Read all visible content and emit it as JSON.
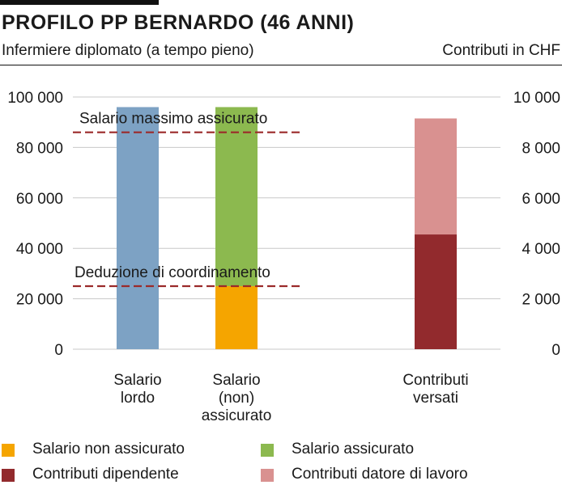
{
  "chart_data": {
    "type": "bar",
    "title": "PROFILO PP BERNARDO (46 ANNI)",
    "subtitle": "Infermiere diplomato (a tempo pieno)",
    "units_label": "Contributi in CHF",
    "left_axis": {
      "ylim": [
        0,
        100000
      ],
      "ticks": [
        "0",
        "20 000",
        "40 000",
        "60 000",
        "80 000",
        "100 000"
      ],
      "tick_values": [
        0,
        20000,
        40000,
        60000,
        80000,
        100000
      ]
    },
    "right_axis": {
      "ylim": [
        0,
        10000
      ],
      "ticks": [
        "0",
        "2 000",
        "4 000",
        "6 000",
        "8 000",
        "10 000"
      ],
      "tick_values": [
        0,
        2000,
        4000,
        6000,
        8000,
        10000
      ]
    },
    "grid": true,
    "categories": [
      "Salario lordo",
      "Salario (non) assicurato",
      "Contributi versati"
    ],
    "category_lines": [
      [
        "Salario",
        "lordo"
      ],
      [
        "Salario",
        "(non)",
        "assicurato"
      ],
      [
        "Contributi",
        "versati"
      ]
    ],
    "bars": [
      {
        "category": "Salario lordo",
        "axis": "left",
        "segments": [
          {
            "name": "Salario lordo",
            "value": 96000,
            "color": "#7da2c4"
          }
        ]
      },
      {
        "category": "Salario (non) assicurato",
        "axis": "left",
        "segments": [
          {
            "name": "Salario non assicurato",
            "value": 25000,
            "color": "#f5a500"
          },
          {
            "name": "Salario assicurato",
            "value": 71000,
            "color": "#8cb94f"
          }
        ]
      },
      {
        "category": "Contributi versati",
        "axis": "right",
        "segments": [
          {
            "name": "Contributi dipendente",
            "value": 4550,
            "color": "#922a2d"
          },
          {
            "name": "Contributi datore di lavoro",
            "value": 4600,
            "color": "#d99190"
          }
        ]
      }
    ],
    "reference_lines": [
      {
        "label": "Salario massimo assicurato",
        "value": 86000,
        "color": "#9b2a2a"
      },
      {
        "label": "Deduzione di coordinamento",
        "value": 25000,
        "color": "#9b2a2a"
      }
    ],
    "legend": [
      {
        "label": "Salario non assicurato",
        "color": "#f5a500"
      },
      {
        "label": "Salario assicurato",
        "color": "#8cb94f"
      },
      {
        "label": "Contributi dipendente",
        "color": "#922a2d"
      },
      {
        "label": "Contributi datore di lavoro",
        "color": "#d99190"
      }
    ],
    "legend_placement": "bottom"
  }
}
